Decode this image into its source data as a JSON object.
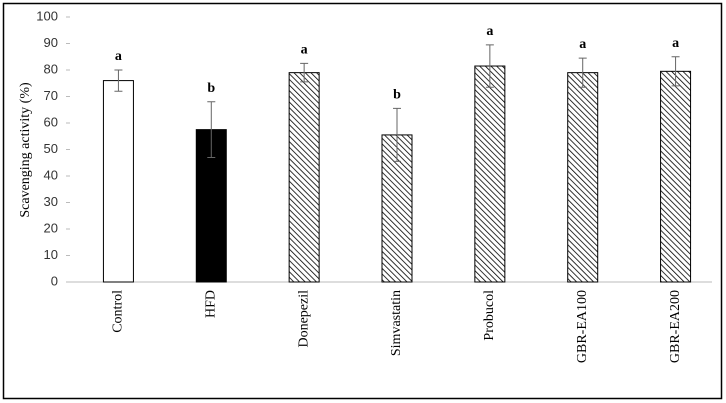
{
  "chart_data": {
    "type": "bar",
    "y_label": "Scavenging activity (%)",
    "categories": [
      "Control",
      "HFD",
      "Donepezil",
      "Simvastatin",
      "Probucol",
      "GBR-EA100",
      "GBR-EA200"
    ],
    "values": [
      76,
      57.5,
      79,
      55.5,
      81.5,
      79,
      79.5
    ],
    "errors": [
      4,
      10.5,
      3.5,
      10,
      8,
      5.5,
      5.5
    ],
    "labels": [
      "a",
      "b",
      "a",
      "b",
      "a",
      "a",
      "a"
    ],
    "bar_fills": [
      "white",
      "black",
      "hatch",
      "hatch",
      "hatch",
      "hatch",
      "hatch"
    ],
    "ylim": [
      0,
      100
    ],
    "yticks": [
      0,
      10,
      20,
      30,
      40,
      50,
      60,
      70,
      80,
      90,
      100
    ],
    "grid": false
  }
}
